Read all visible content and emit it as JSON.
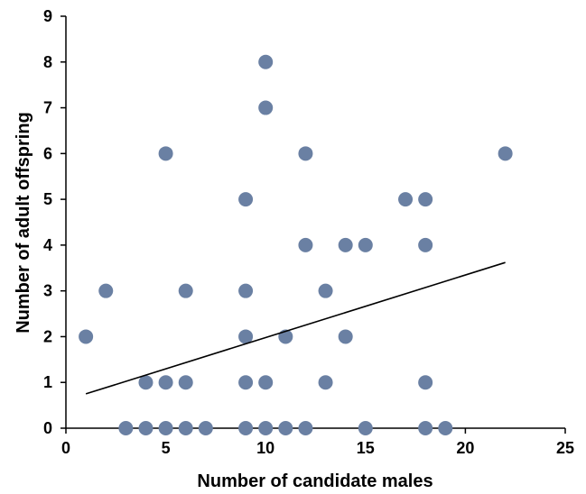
{
  "chart_data": {
    "type": "scatter",
    "title": "",
    "xlabel": "Number of candidate males",
    "ylabel": "Number of adult offspring",
    "xlim": [
      0,
      25
    ],
    "ylim": [
      0,
      9
    ],
    "xticks": [
      0,
      5,
      10,
      15,
      20,
      25
    ],
    "yticks": [
      0,
      1,
      2,
      3,
      4,
      5,
      6,
      7,
      8,
      9
    ],
    "grid": false,
    "marker_color": "#6a80a3",
    "trendline_color": "#000000",
    "points": [
      {
        "x": 1,
        "y": 2
      },
      {
        "x": 2,
        "y": 3
      },
      {
        "x": 3,
        "y": 0
      },
      {
        "x": 4,
        "y": 0
      },
      {
        "x": 4,
        "y": 1
      },
      {
        "x": 5,
        "y": 0
      },
      {
        "x": 5,
        "y": 1
      },
      {
        "x": 5,
        "y": 6
      },
      {
        "x": 6,
        "y": 0
      },
      {
        "x": 6,
        "y": 1
      },
      {
        "x": 6,
        "y": 3
      },
      {
        "x": 7,
        "y": 0
      },
      {
        "x": 9,
        "y": 0
      },
      {
        "x": 9,
        "y": 1
      },
      {
        "x": 9,
        "y": 2
      },
      {
        "x": 9,
        "y": 3
      },
      {
        "x": 9,
        "y": 5
      },
      {
        "x": 10,
        "y": 0
      },
      {
        "x": 10,
        "y": 1
      },
      {
        "x": 10,
        "y": 7
      },
      {
        "x": 10,
        "y": 8
      },
      {
        "x": 11,
        "y": 0
      },
      {
        "x": 11,
        "y": 2
      },
      {
        "x": 12,
        "y": 0
      },
      {
        "x": 12,
        "y": 4
      },
      {
        "x": 12,
        "y": 6
      },
      {
        "x": 13,
        "y": 1
      },
      {
        "x": 13,
        "y": 3
      },
      {
        "x": 14,
        "y": 2
      },
      {
        "x": 14,
        "y": 4
      },
      {
        "x": 15,
        "y": 0
      },
      {
        "x": 15,
        "y": 4
      },
      {
        "x": 17,
        "y": 5
      },
      {
        "x": 18,
        "y": 0
      },
      {
        "x": 18,
        "y": 1
      },
      {
        "x": 18,
        "y": 4
      },
      {
        "x": 18,
        "y": 5
      },
      {
        "x": 19,
        "y": 0
      },
      {
        "x": 22,
        "y": 6
      }
    ],
    "trendline": {
      "x": [
        1,
        22
      ],
      "y": [
        0.75,
        3.62
      ]
    }
  }
}
